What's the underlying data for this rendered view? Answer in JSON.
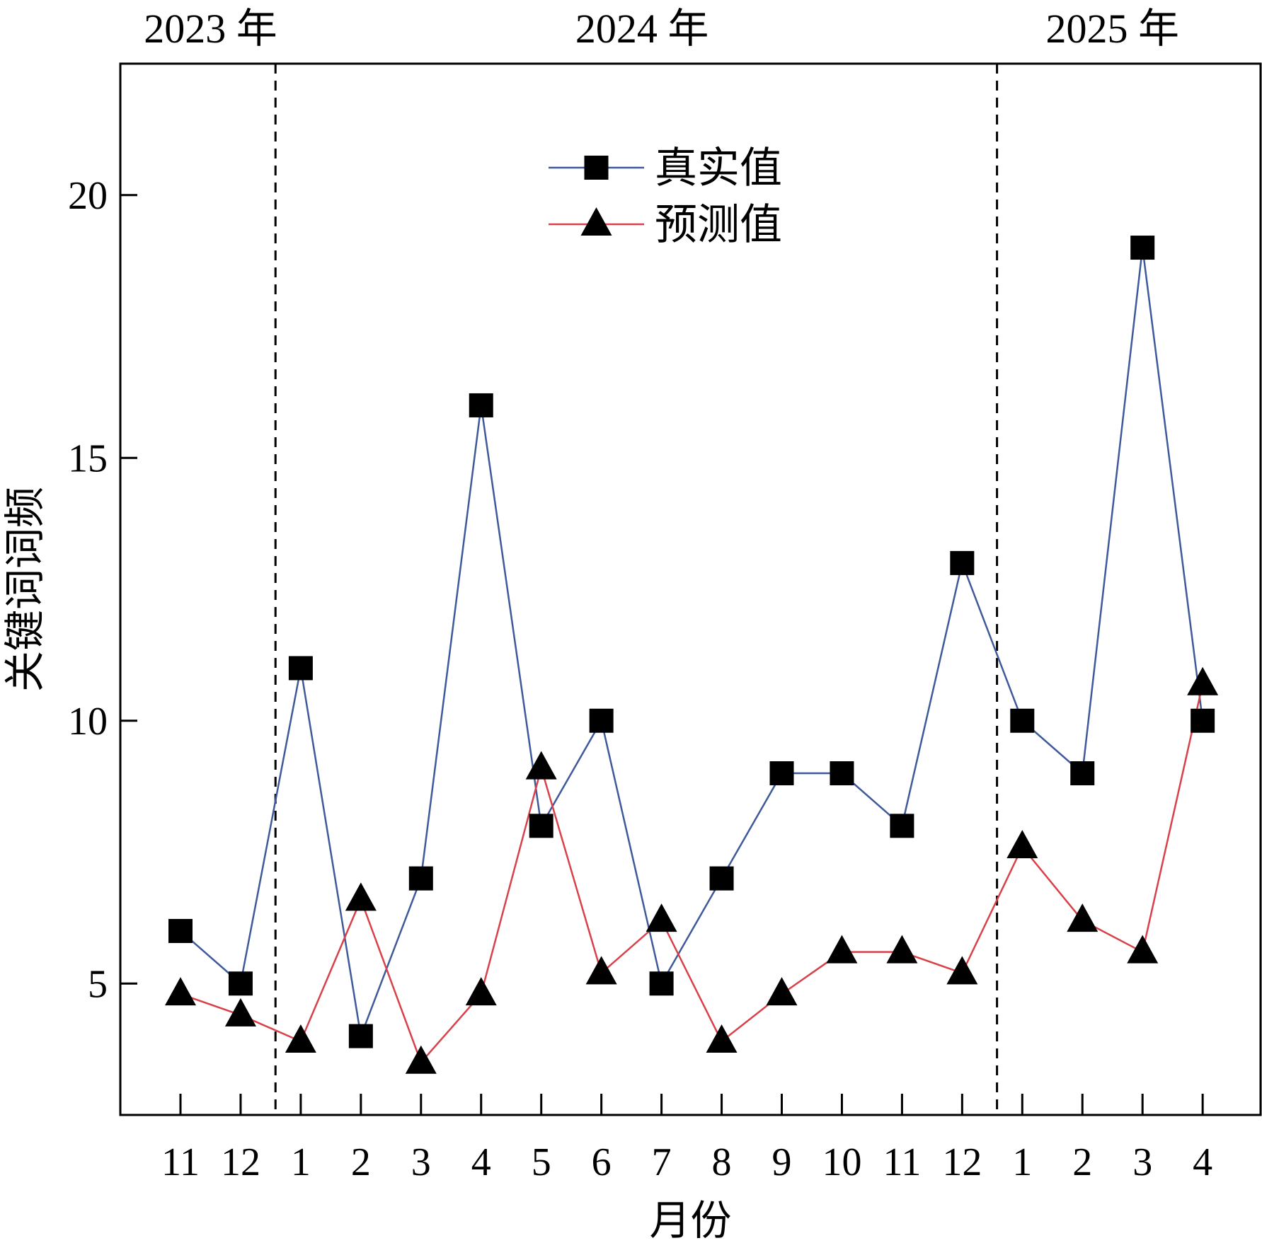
{
  "chart_data": {
    "type": "line",
    "xlabel": "月份",
    "ylabel": "关键词词频",
    "categories": [
      "11",
      "12",
      "1",
      "2",
      "3",
      "4",
      "5",
      "6",
      "7",
      "8",
      "9",
      "10",
      "11",
      "12",
      "1",
      "2",
      "3",
      "4"
    ],
    "year_labels": [
      {
        "label": "2023 年",
        "span": [
          0,
          1
        ]
      },
      {
        "label": "2024 年",
        "span": [
          2,
          13
        ]
      },
      {
        "label": "2025 年",
        "span": [
          14,
          17
        ]
      }
    ],
    "year_dividers_after_index": [
      1,
      13
    ],
    "ylim": [
      2.5,
      22.5
    ],
    "yticks": [
      5,
      10,
      15,
      20
    ],
    "grid": false,
    "legend_position": "top-center",
    "series": [
      {
        "name": "真实值",
        "marker": "square",
        "color": "#3f5a9a",
        "values": [
          6,
          5,
          11,
          4,
          7,
          16,
          8,
          10,
          5,
          7,
          9,
          9,
          8,
          13,
          10,
          9,
          19,
          10
        ]
      },
      {
        "name": "预测值",
        "marker": "triangle",
        "color": "#d9414a",
        "values": [
          4.8,
          4.4,
          3.9,
          6.6,
          3.5,
          4.8,
          9.1,
          5.2,
          6.2,
          3.9,
          4.8,
          5.6,
          5.6,
          5.2,
          7.6,
          6.2,
          5.6,
          10.7
        ]
      }
    ]
  }
}
